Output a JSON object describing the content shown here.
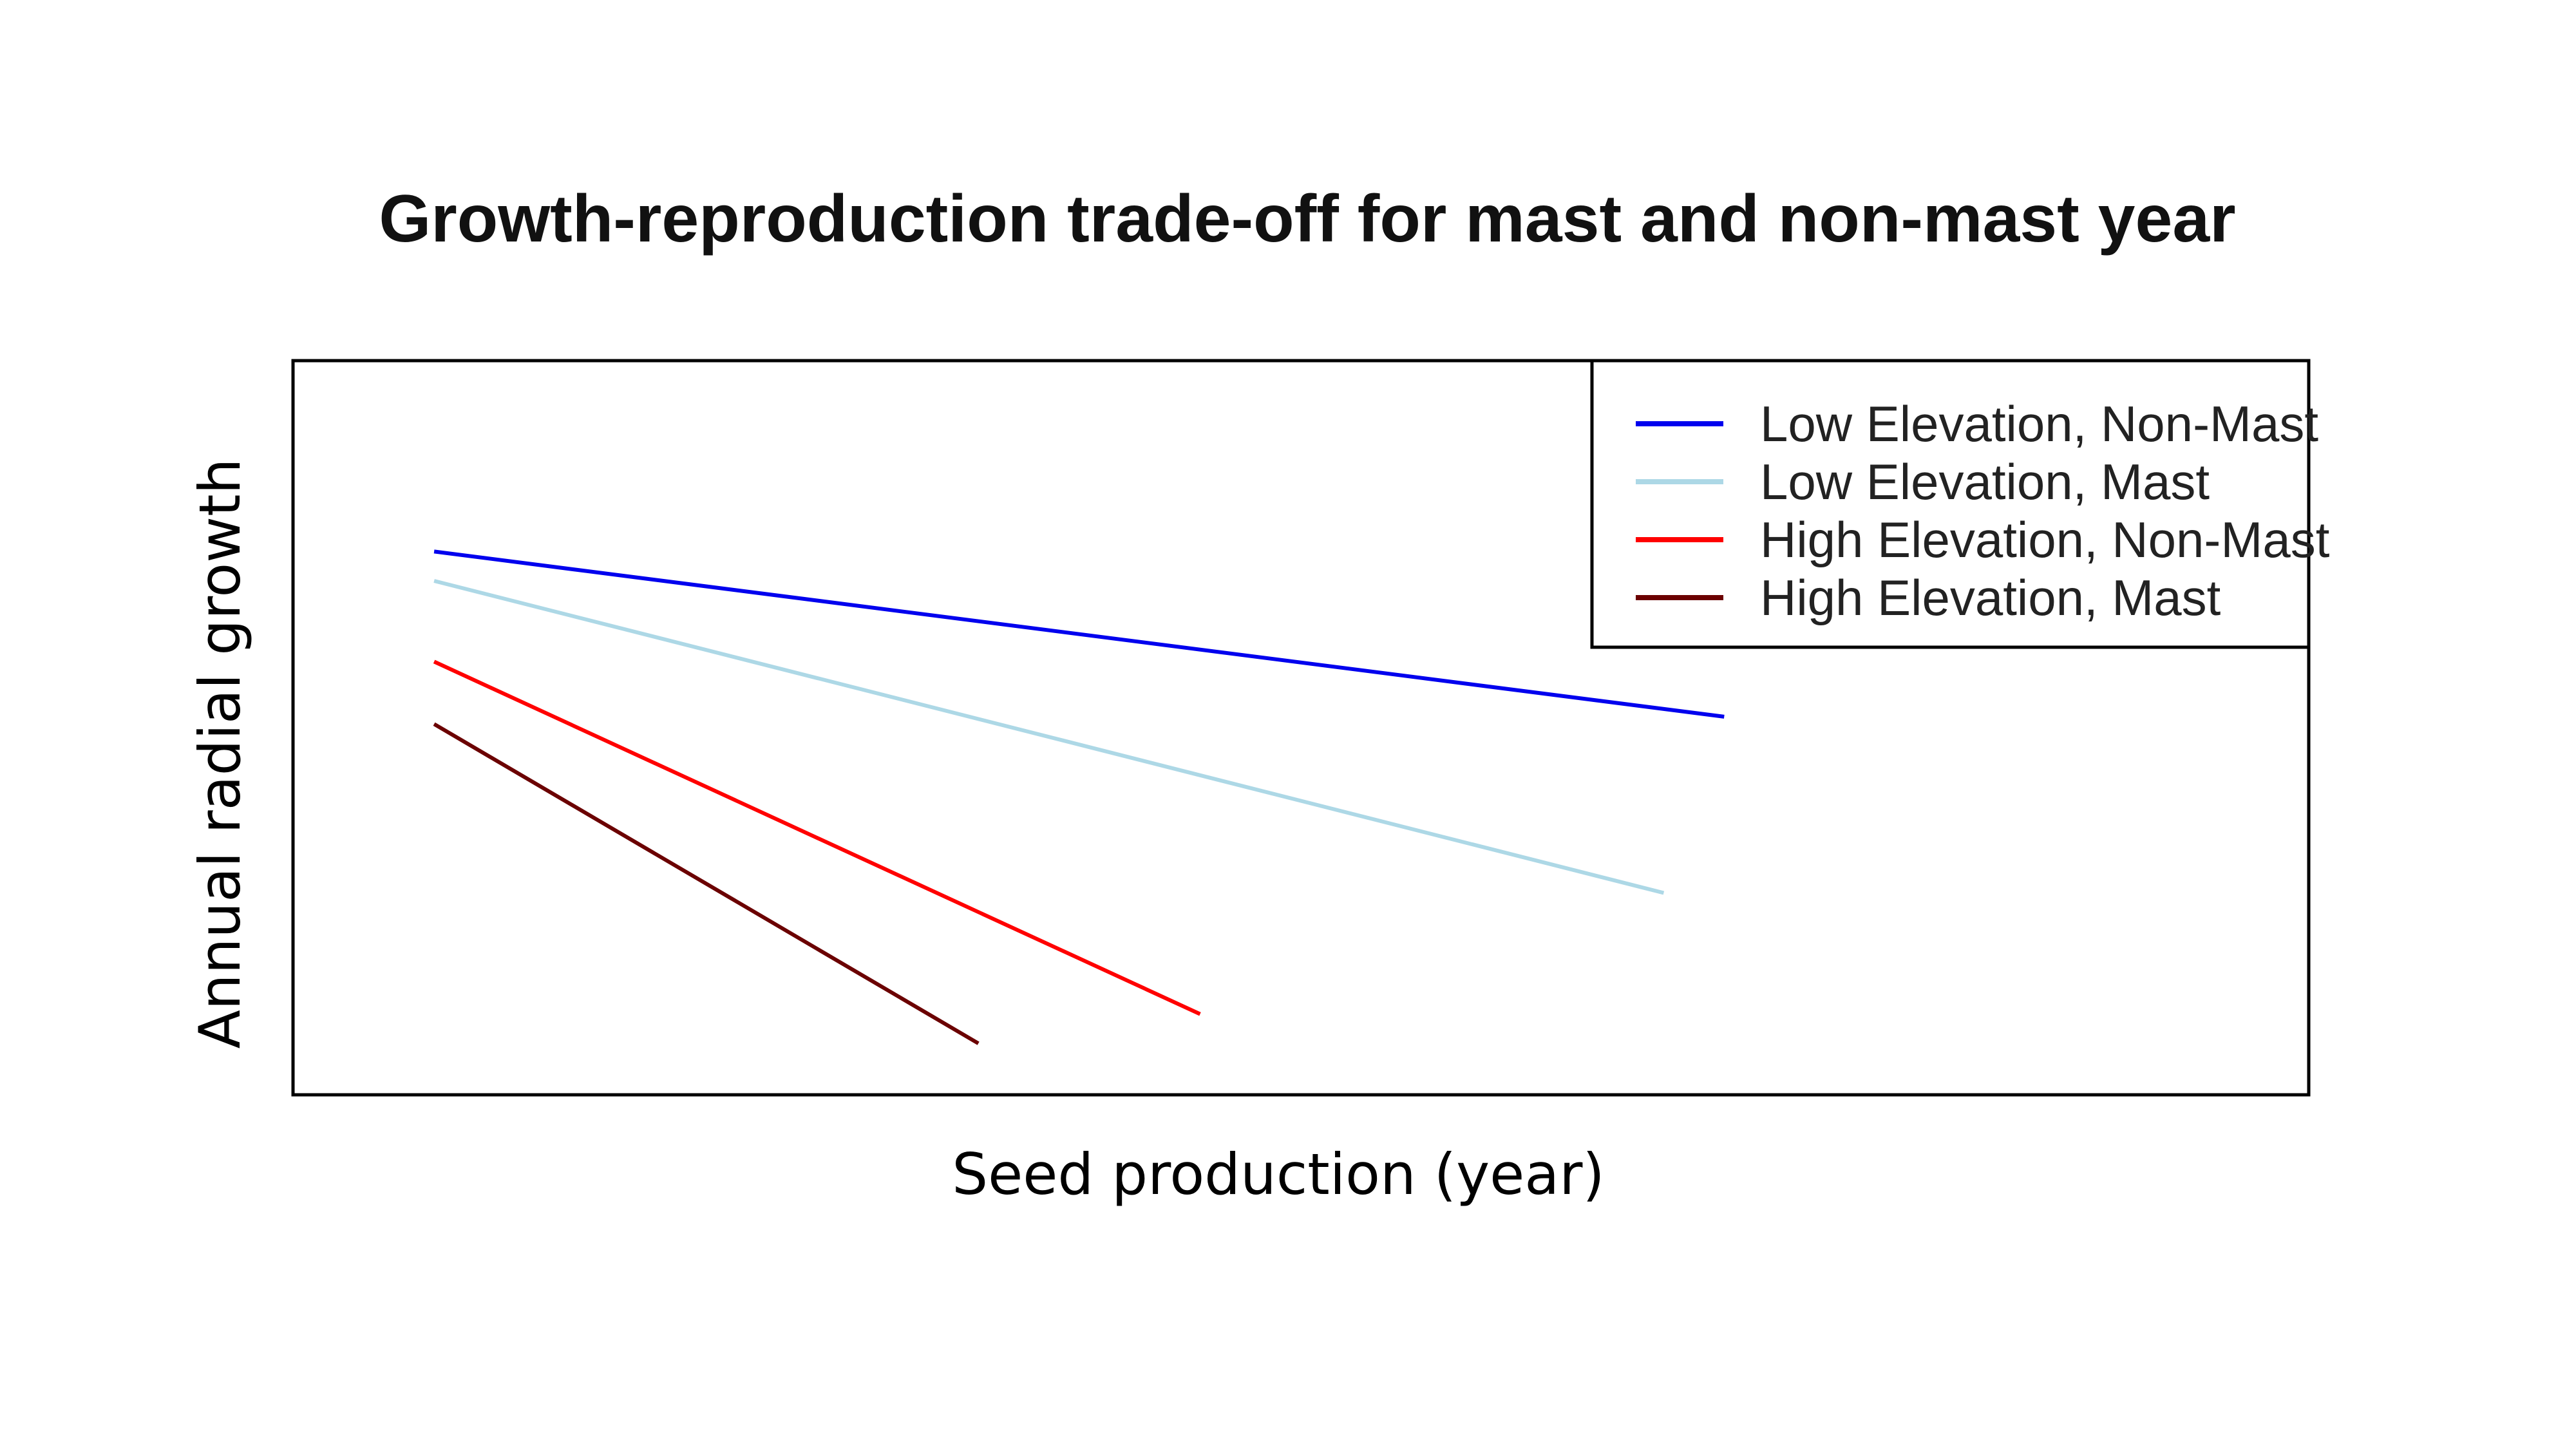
{
  "chart_data": {
    "type": "line",
    "title": "Growth-reproduction trade-off for mast and non-mast year",
    "xlabel": "Seed production (year)",
    "ylabel": "Annual radial growth",
    "xlim": [
      0,
      100
    ],
    "ylim": [
      0,
      100
    ],
    "grid": false,
    "axis_ticks_shown": false,
    "legend_position": "top-right",
    "series": [
      {
        "name": "Low Elevation, Non-Mast",
        "color": "#0000ee",
        "x": [
          7,
          71
        ],
        "y": [
          74,
          51.5
        ]
      },
      {
        "name": "Low Elevation, Mast",
        "color": "#add8e6",
        "x": [
          7,
          68
        ],
        "y": [
          70,
          27.5
        ]
      },
      {
        "name": "High Elevation, Non-Mast",
        "color": "#ff0000",
        "x": [
          7,
          45
        ],
        "y": [
          59,
          11
        ]
      },
      {
        "name": "High Elevation, Mast",
        "color": "#6b0000",
        "x": [
          7,
          34
        ],
        "y": [
          50.5,
          7
        ]
      }
    ]
  }
}
